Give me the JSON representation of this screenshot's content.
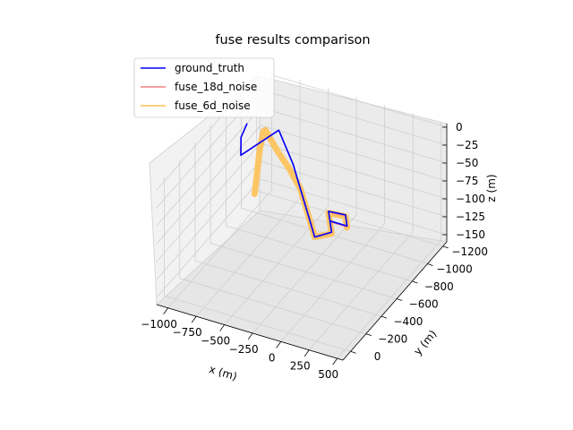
{
  "chart_data": {
    "type": "line",
    "projection": "3d",
    "title": "fuse results comparison",
    "xlabel": "x (m)",
    "ylabel": "y (m)",
    "zlabel": "z (m)",
    "x_ticks": [
      "−1000",
      "−750",
      "−500",
      "−250",
      "0",
      "250",
      "500"
    ],
    "y_ticks": [
      "0",
      "−200",
      "−400",
      "−600",
      "−800",
      "−1000",
      "−1200"
    ],
    "z_ticks": [
      "0",
      "−25",
      "−50",
      "−75",
      "−100",
      "−125",
      "−150"
    ],
    "xlim": [
      -1100,
      550
    ],
    "ylim": [
      -1250,
      100
    ],
    "zlim": [
      -160,
      5
    ],
    "grid": true,
    "legend_position": "top-left",
    "series": [
      {
        "name": "ground_truth",
        "color": "#0000ff",
        "x": [
          -1050,
          -1000,
          -900,
          -700,
          -300,
          -100,
          100,
          300,
          300,
          150,
          300,
          450,
          300
        ],
        "y": [
          -1000,
          -850,
          -700,
          -900,
          -500,
          -300,
          -100,
          100,
          -120,
          -300,
          -300,
          -100,
          -100
        ],
        "z": [
          -40,
          -38,
          -40,
          -20,
          0,
          0,
          0,
          0,
          -20,
          -20,
          -18,
          -2,
          -2
        ]
      },
      {
        "name": "fuse_18d_noise",
        "color": "#f08080",
        "x": [
          -1050,
          -1000,
          -900,
          -700,
          -300,
          -100,
          100,
          300,
          300,
          150,
          300,
          450,
          300
        ],
        "y": [
          -1000,
          -850,
          -700,
          -900,
          -500,
          -300,
          -100,
          100,
          -120,
          -300,
          -300,
          -100,
          -100
        ],
        "z": [
          -40,
          -38,
          -40,
          -20,
          0,
          0,
          0,
          0,
          -21,
          -21,
          -19,
          -3,
          -3
        ]
      },
      {
        "name": "fuse_6d_noise",
        "color": "#ffc04d",
        "x": [
          -1050,
          -1000,
          -950,
          -900,
          -850,
          -800,
          -750,
          -500,
          -300,
          -100,
          100,
          300,
          300,
          150,
          300,
          450
        ],
        "y": [
          -1100,
          -1050,
          -1000,
          -950,
          -900,
          -850,
          -800,
          -600,
          -450,
          -300,
          -100,
          100,
          -120,
          -300,
          -300,
          -100
        ],
        "z": [
          -150,
          -120,
          -90,
          -60,
          -40,
          -20,
          -10,
          -5,
          0,
          0,
          0,
          0,
          -22,
          -22,
          -20,
          -4
        ]
      }
    ]
  }
}
